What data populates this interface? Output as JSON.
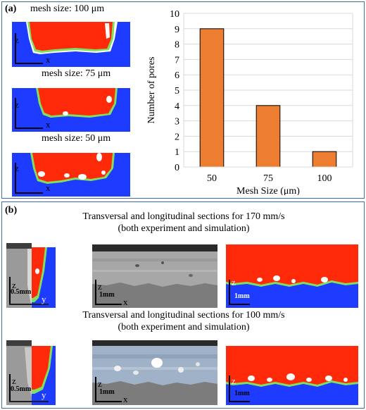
{
  "panel_a": {
    "label": "(a)",
    "sims": [
      {
        "caption": "mesh size: 100 μm",
        "axis_z": "z",
        "axis_x": "x"
      },
      {
        "caption": "mesh size: 75 μm",
        "axis_z": "z",
        "axis_x": "x"
      },
      {
        "caption": "mesh size: 50 μm",
        "axis_z": "z",
        "axis_x": "x"
      }
    ]
  },
  "chart_data": {
    "type": "bar",
    "categories": [
      "50",
      "75",
      "100"
    ],
    "values": [
      9,
      4,
      1
    ],
    "title": "",
    "xlabel": "Mesh Size (μm)",
    "ylabel": "Number of pores",
    "ylim": [
      0,
      10
    ],
    "yticks": [
      "0",
      "1",
      "2",
      "3",
      "4",
      "5",
      "6",
      "7",
      "8",
      "9",
      "10"
    ],
    "grid": true,
    "bar_color": "#ed7d31"
  },
  "panel_b": {
    "label": "(b)",
    "rows": [
      {
        "caption_line1": "Transversal and longitudinal sections for 170 mm/s",
        "caption_line2": "(both experiment and simulation)",
        "scale_small": "0.5mm",
        "scale_large": "1mm",
        "scale_sim": "1mm",
        "axis_z": "z",
        "axis_x": "x",
        "axis_y": "y"
      },
      {
        "caption_line1": "Transversal and longitudinal sections for 100 mm/s",
        "caption_line2": "(both experiment and simulation)",
        "scale_small": "0.5mm",
        "scale_large": "1mm",
        "scale_sim": "1mm",
        "axis_z": "z",
        "axis_x": "x",
        "axis_y": "y"
      }
    ]
  },
  "colors": {
    "melt": "#ff2a0a",
    "substrate": "#1e3cff",
    "interface": "#7fe060",
    "border": "#3a6ea5"
  }
}
